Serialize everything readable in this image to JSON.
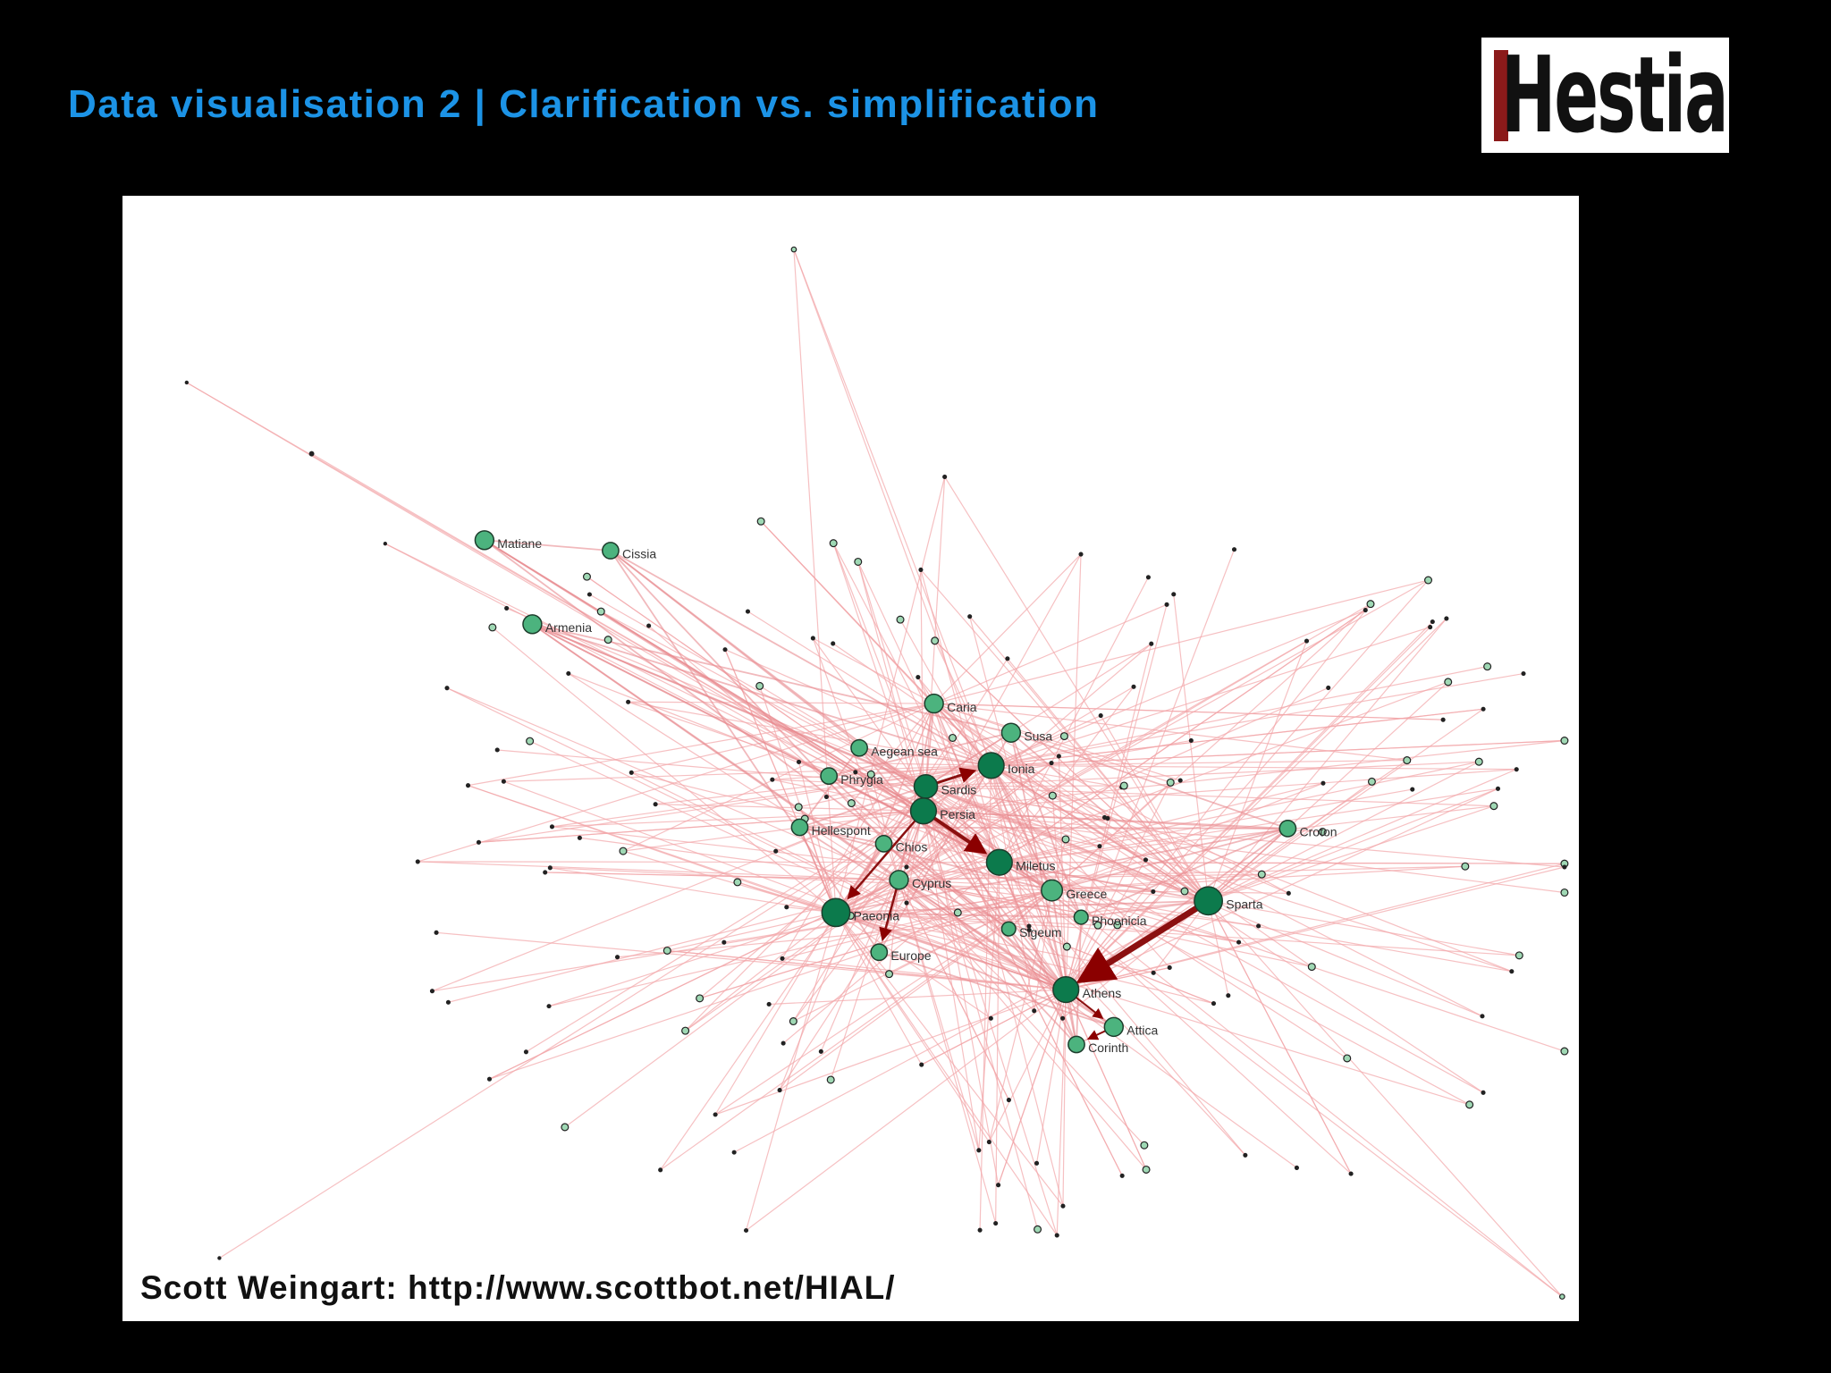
{
  "header": {
    "title": "Data visualisation 2 | Clarification vs. simplification",
    "logo": "Hestia"
  },
  "network": {
    "nodes": [
      {
        "label": "Matiane"
      },
      {
        "label": "Cissia"
      },
      {
        "label": "Armenia"
      },
      {
        "label": "Caria"
      },
      {
        "label": "Susa"
      },
      {
        "label": "Aegean sea"
      },
      {
        "label": "Ionia"
      },
      {
        "label": "Phrygia"
      },
      {
        "label": "Sardis"
      },
      {
        "label": "Persia"
      },
      {
        "label": "Hellespont"
      },
      {
        "label": "Chios"
      },
      {
        "label": "Miletus"
      },
      {
        "label": "Cyprus"
      },
      {
        "label": "Greece"
      },
      {
        "label": "Sparta"
      },
      {
        "label": "Croton"
      },
      {
        "label": "Paeonia"
      },
      {
        "label": "Phoenicia"
      },
      {
        "label": "Sigeum"
      },
      {
        "label": "Europe"
      },
      {
        "label": "Athens"
      },
      {
        "label": "Attica"
      },
      {
        "label": "Corinth"
      }
    ]
  },
  "footer": {
    "credit": "Scott Weingart: http://www.scottbot.net/HIAL/"
  }
}
